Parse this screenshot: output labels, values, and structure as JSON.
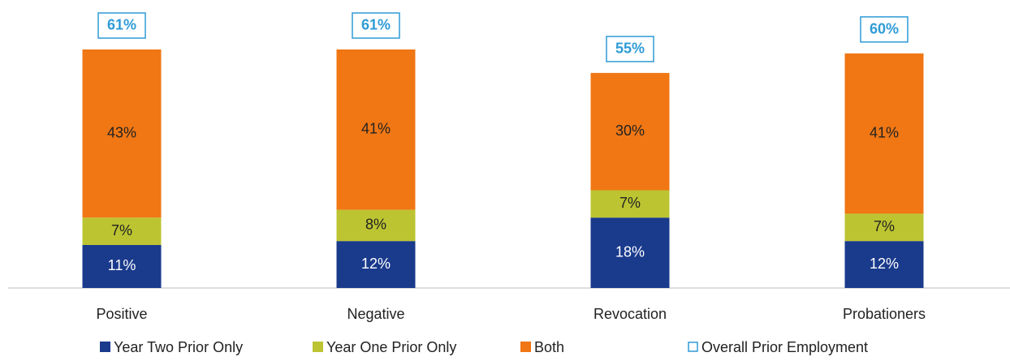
{
  "chart_data": {
    "type": "bar",
    "stacked": true,
    "categories": [
      "Positive",
      "Negative",
      "Revocation",
      "Probationers"
    ],
    "series": [
      {
        "name": "Year Two Prior Only",
        "color": "#1a3a8c",
        "values": [
          11,
          12,
          18,
          12
        ],
        "value_labels": [
          "11%",
          "12%",
          "18%",
          "12%"
        ]
      },
      {
        "name": "Year One Prior Only",
        "color": "#bcc431",
        "values": [
          7,
          8,
          7,
          7
        ],
        "value_labels": [
          "7%",
          "8%",
          "7%",
          "7%"
        ]
      },
      {
        "name": "Both",
        "color": "#f07714",
        "values": [
          43,
          41,
          30,
          41
        ],
        "value_labels": [
          "43%",
          "41%",
          "30%",
          "41%"
        ]
      }
    ],
    "totals": {
      "name": "Overall Prior Employment",
      "color": "#2e9bd6",
      "values": [
        61,
        61,
        55,
        60
      ],
      "value_labels": [
        "61%",
        "61%",
        "55%",
        "60%"
      ]
    }
  }
}
